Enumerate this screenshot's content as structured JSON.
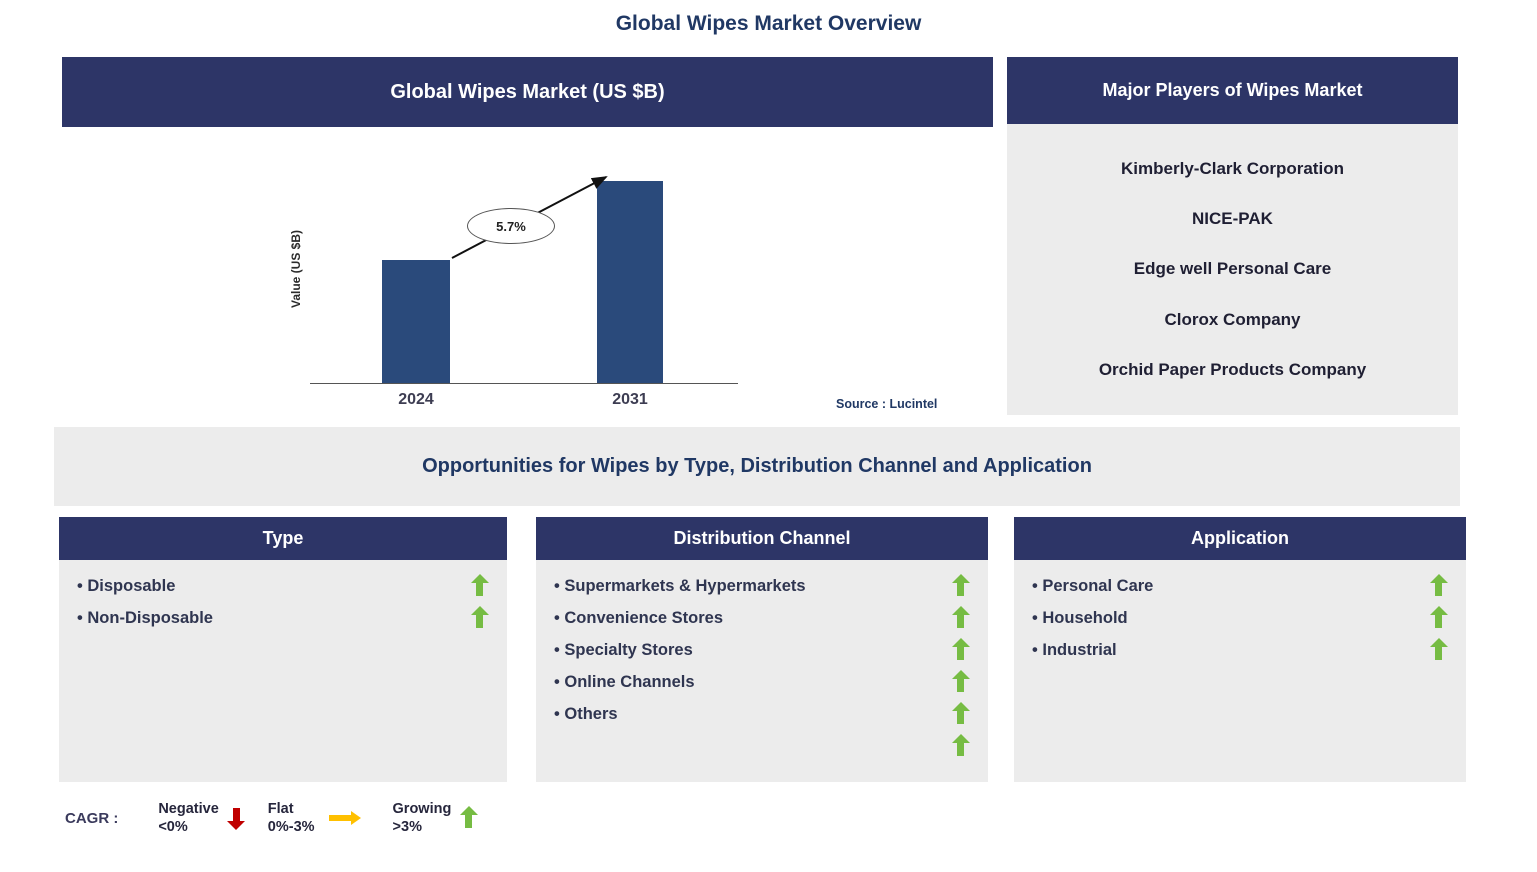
{
  "page_title": "Global Wipes Market Overview",
  "colors": {
    "header_navy": "#2D3567",
    "title_navy": "#203864",
    "bar_blue": "#2A4A7B",
    "panel_gray": "#ECECEC",
    "growing_green": "#76BC43",
    "negative_red": "#C00000",
    "flat_yellow": "#FFC000"
  },
  "chart_panel": {
    "header": "Global Wipes Market (US $B)",
    "source": "Source : Lucintel"
  },
  "chart_data": {
    "type": "bar",
    "title": "Global Wipes Market (US $B)",
    "categories": [
      "2024",
      "2031"
    ],
    "values": [
      53,
      87
    ],
    "ylim": [
      0,
      100
    ],
    "ylabel": "Value (US $B)",
    "xlabel": "",
    "grid": false,
    "legend_shown": false,
    "annotation": "5.7%",
    "note": "Y-axis has no tick values; bar values are estimated as percent of plot height. 5.7% is the growth (CAGR) annotation between the two bars."
  },
  "players_panel": {
    "header": "Major Players of Wipes Market",
    "players": [
      "Kimberly-Clark Corporation",
      "NICE-PAK",
      "Edge well Personal Care",
      "Clorox Company",
      "Orchid Paper Products Company"
    ]
  },
  "opportunities_banner": "Opportunities for Wipes by Type, Distribution Channel and Application",
  "type_panel": {
    "header": "Type",
    "items": [
      {
        "label": "Disposable",
        "trend": "growing"
      },
      {
        "label": "Non-Disposable",
        "trend": "growing"
      }
    ]
  },
  "distribution_panel": {
    "header": "Distribution Channel",
    "items": [
      {
        "label": "Supermarkets & Hypermarkets",
        "trend": "growing"
      },
      {
        "label": "Convenience Stores",
        "trend": "growing"
      },
      {
        "label": "Specialty Stores",
        "trend": "growing"
      },
      {
        "label": "Online Channels",
        "trend": "growing"
      },
      {
        "label": "Others",
        "trend": "growing"
      }
    ],
    "extra_trend_arrow": "growing"
  },
  "application_panel": {
    "header": "Application",
    "items": [
      {
        "label": "Personal Care",
        "trend": "growing"
      },
      {
        "label": "Household",
        "trend": "growing"
      },
      {
        "label": "Industrial",
        "trend": "growing"
      }
    ]
  },
  "legend": {
    "prefix": "CAGR :",
    "entries": [
      {
        "label": "Negative",
        "range": "<0%",
        "icon": "down-arrow",
        "color": "#C00000"
      },
      {
        "label": "Flat",
        "range": "0%-3%",
        "icon": "right-arrow",
        "color": "#FFC000"
      },
      {
        "label": "Growing",
        "range": ">3%",
        "icon": "up-arrow",
        "color": "#76BC43"
      }
    ]
  }
}
